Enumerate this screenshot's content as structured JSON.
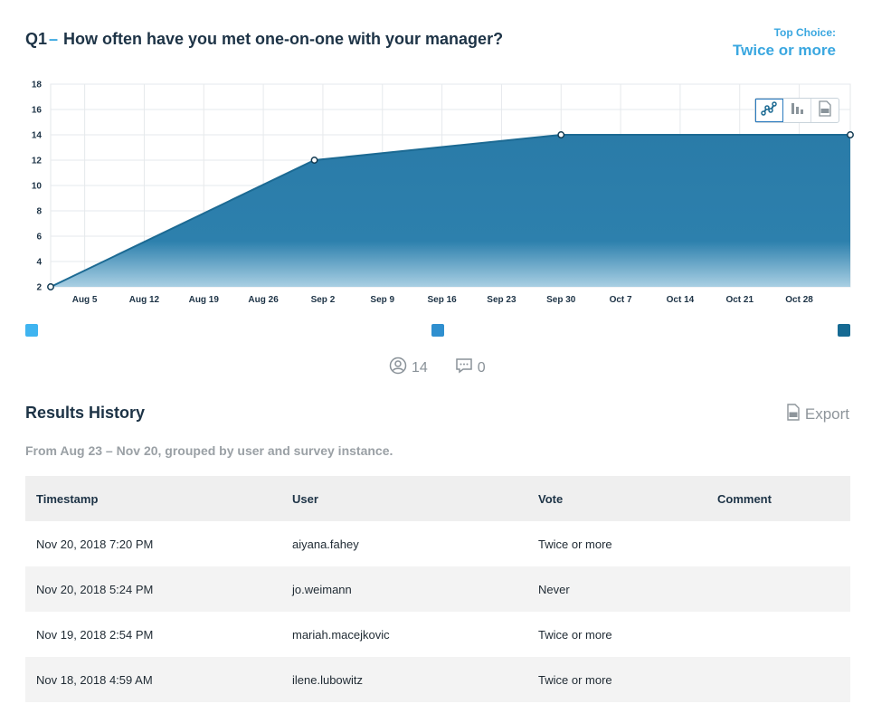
{
  "question": {
    "number": "Q1",
    "dash": "–",
    "text": "How often have you met one-on-one with your manager?"
  },
  "top_choice": {
    "label": "Top Choice:",
    "value": "Twice or more"
  },
  "chart_toggles": [
    "line-chart-icon",
    "bar-chart-icon",
    "csv-file-icon"
  ],
  "chart_data": {
    "type": "area",
    "x_ticks": [
      "Aug 5",
      "Aug 12",
      "Aug 19",
      "Aug 26",
      "Sep 2",
      "Sep 9",
      "Sep 16",
      "Sep 23",
      "Sep 30",
      "Oct 7",
      "Oct 14",
      "Oct 21",
      "Oct 28"
    ],
    "y_ticks": [
      2,
      4,
      6,
      8,
      10,
      12,
      14,
      16,
      18
    ],
    "ylim": [
      2,
      18
    ],
    "xlim": [
      "2018-08-01",
      "2018-11-03"
    ],
    "points": [
      {
        "x": "2018-08-01",
        "y": 2
      },
      {
        "x": "2018-09-01",
        "y": 12
      },
      {
        "x": "2018-09-30",
        "y": 14
      },
      {
        "x": "2018-11-03",
        "y": 14
      }
    ],
    "grid": true,
    "fill_color": "#2a7ba8",
    "line_color": "#1c6a93"
  },
  "legend_colors": [
    "#3fb4f0",
    "#2f8fcf",
    "#166a93"
  ],
  "counts": {
    "participants": "14",
    "comments": "0"
  },
  "results": {
    "title": "Results History",
    "export_label": "Export",
    "subtitle": "From Aug 23 – Nov 20, grouped by user and survey instance.",
    "columns": [
      "Timestamp",
      "User",
      "Vote",
      "Comment"
    ],
    "rows": [
      {
        "timestamp": "Nov 20, 2018 7:20 PM",
        "user": "aiyana.fahey",
        "vote": "Twice or more",
        "comment": ""
      },
      {
        "timestamp": "Nov 20, 2018 5:24 PM",
        "user": "jo.weimann",
        "vote": "Never",
        "comment": ""
      },
      {
        "timestamp": "Nov 19, 2018 2:54 PM",
        "user": "mariah.macejkovic",
        "vote": "Twice or more",
        "comment": ""
      },
      {
        "timestamp": "Nov 18, 2018 4:59 AM",
        "user": "ilene.lubowitz",
        "vote": "Twice or more",
        "comment": ""
      }
    ]
  }
}
